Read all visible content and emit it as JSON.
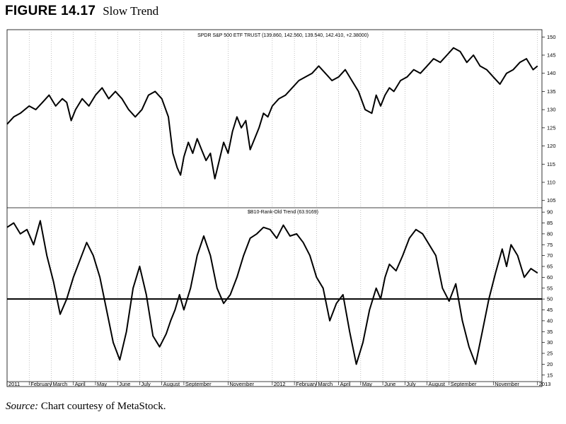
{
  "figure": {
    "label": "FIGURE 14.17",
    "title": "Slow Trend"
  },
  "caption": {
    "source_label": "Source:",
    "text": "Chart courtesy of MetaStock."
  },
  "chart_data": [
    {
      "type": "line",
      "title": "SPDR S&P 500 ETF TRUST (139.860, 142.560, 139.540, 142.410, +2.38000)",
      "ylim": [
        103,
        152
      ],
      "yticks": [
        105,
        110,
        115,
        120,
        125,
        130,
        135,
        140,
        145,
        150
      ],
      "xlim": [
        0,
        24.2
      ],
      "grid": "vertical-dotted",
      "series": [
        {
          "x": [
            0,
            0.3,
            0.6,
            1.0,
            1.3,
            1.6,
            1.9,
            2.2,
            2.5,
            2.7,
            2.9,
            3.1,
            3.4,
            3.7,
            4.0,
            4.3,
            4.6,
            4.9,
            5.2,
            5.5,
            5.8,
            6.1,
            6.4,
            6.7,
            7.0,
            7.3,
            7.5,
            7.7,
            7.85,
            8.0,
            8.2,
            8.4,
            8.6,
            8.8,
            9.0,
            9.2,
            9.4,
            9.6,
            9.8,
            10.0,
            10.2,
            10.4,
            10.6,
            10.8,
            11.0,
            11.2,
            11.4,
            11.6,
            11.8,
            12.0,
            12.3,
            12.6,
            12.9,
            13.2,
            13.5,
            13.8,
            14.1,
            14.4,
            14.7,
            15.0,
            15.3,
            15.6,
            15.9,
            16.2,
            16.5,
            16.7,
            16.9,
            17.1,
            17.3,
            17.5,
            17.8,
            18.1,
            18.4,
            18.7,
            19.0,
            19.3,
            19.6,
            19.9,
            20.2,
            20.5,
            20.8,
            21.1,
            21.4,
            21.7,
            22.0,
            22.3,
            22.6,
            22.9,
            23.2,
            23.5,
            23.8,
            24.0
          ],
          "values": [
            126,
            128,
            129,
            131,
            130,
            132,
            134,
            131,
            133,
            132,
            127,
            130,
            133,
            131,
            134,
            136,
            133,
            135,
            133,
            130,
            128,
            130,
            134,
            135,
            133,
            128,
            118,
            114,
            112,
            117,
            121,
            118,
            122,
            119,
            116,
            118,
            111,
            116,
            121,
            118,
            124,
            128,
            125,
            127,
            119,
            122,
            125,
            129,
            128,
            131,
            133,
            134,
            136,
            138,
            139,
            140,
            142,
            140,
            138,
            139,
            141,
            138,
            135,
            130,
            129,
            134,
            131,
            134,
            136,
            135,
            138,
            139,
            141,
            140,
            142,
            144,
            143,
            145,
            147,
            146,
            143,
            145,
            142,
            141,
            139,
            137,
            140,
            141,
            143,
            144,
            141,
            142
          ]
        }
      ]
    },
    {
      "type": "line",
      "title": "$B10-Rank-Old Trend (63.9169)",
      "ylim": [
        12,
        92
      ],
      "yticks": [
        15,
        20,
        25,
        30,
        35,
        40,
        45,
        50,
        55,
        60,
        65,
        70,
        75,
        80,
        85,
        90
      ],
      "xlim": [
        0,
        24.2
      ],
      "grid": "vertical-dotted",
      "reference_line": 50,
      "categories": [
        "2011",
        "February",
        "March",
        "April",
        "May",
        "June",
        "July",
        "August",
        "September",
        "November",
        "2012",
        "February",
        "March",
        "April",
        "May",
        "June",
        "July",
        "August",
        "September",
        "November",
        "2013"
      ],
      "category_x": [
        0,
        1.0,
        2.0,
        3.0,
        4.0,
        5.0,
        6.0,
        7.0,
        8.0,
        10.0,
        12.0,
        13.0,
        14.0,
        15.0,
        16.0,
        17.0,
        18.0,
        19.0,
        20.0,
        22.0,
        24.0
      ],
      "series": [
        {
          "x": [
            0,
            0.3,
            0.6,
            0.9,
            1.2,
            1.5,
            1.8,
            2.1,
            2.4,
            2.7,
            3.0,
            3.3,
            3.6,
            3.9,
            4.2,
            4.5,
            4.8,
            5.1,
            5.4,
            5.7,
            6.0,
            6.3,
            6.6,
            6.9,
            7.2,
            7.4,
            7.6,
            7.8,
            8.0,
            8.3,
            8.6,
            8.9,
            9.2,
            9.5,
            9.8,
            10.1,
            10.4,
            10.7,
            11.0,
            11.3,
            11.6,
            11.9,
            12.2,
            12.5,
            12.8,
            13.1,
            13.4,
            13.7,
            14.0,
            14.3,
            14.6,
            14.9,
            15.2,
            15.5,
            15.8,
            16.1,
            16.4,
            16.7,
            16.9,
            17.1,
            17.3,
            17.6,
            17.9,
            18.2,
            18.5,
            18.8,
            19.1,
            19.4,
            19.7,
            20.0,
            20.3,
            20.6,
            20.9,
            21.2,
            21.5,
            21.8,
            22.1,
            22.4,
            22.6,
            22.8,
            23.1,
            23.4,
            23.7,
            24.0
          ],
          "values": [
            83,
            85,
            80,
            82,
            75,
            86,
            70,
            58,
            43,
            50,
            60,
            68,
            76,
            70,
            60,
            45,
            30,
            22,
            35,
            55,
            65,
            52,
            33,
            28,
            34,
            40,
            45,
            52,
            45,
            55,
            70,
            79,
            70,
            55,
            48,
            52,
            60,
            70,
            78,
            80,
            83,
            82,
            78,
            84,
            79,
            80,
            76,
            70,
            60,
            55,
            40,
            48,
            52,
            35,
            20,
            30,
            45,
            55,
            50,
            60,
            66,
            63,
            70,
            78,
            82,
            80,
            75,
            70,
            55,
            49,
            57,
            40,
            28,
            20,
            35,
            50,
            62,
            73,
            65,
            75,
            70,
            60,
            64,
            62
          ]
        }
      ]
    }
  ]
}
